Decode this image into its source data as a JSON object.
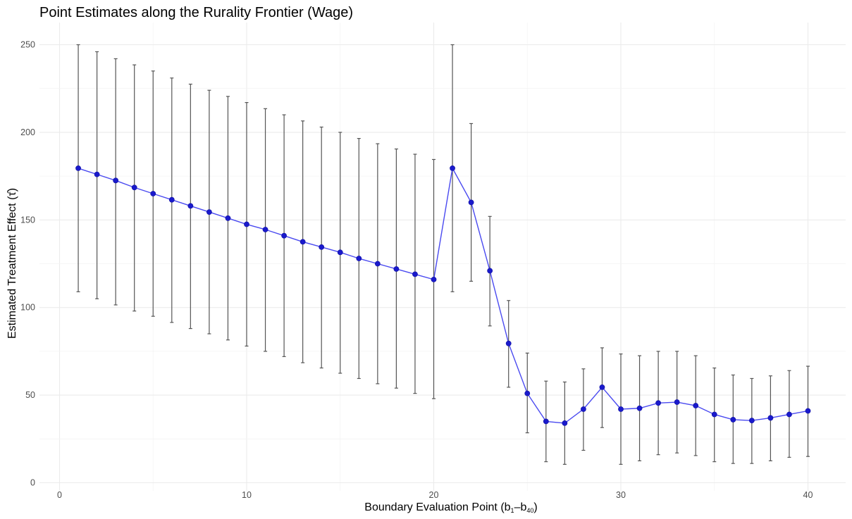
{
  "chart_data": {
    "type": "line",
    "title": "Point Estimates along the Rurality Frontier (Wage)",
    "xlabel_prefix": "Boundary Evaluation Point (b",
    "xlabel_sub1": "1",
    "xlabel_mid": "–b",
    "xlabel_sub2": "40",
    "xlabel_suffix": ")",
    "ylabel": "Estimated Treatment Effect (τ̂)",
    "xlim": [
      0,
      40
    ],
    "ylim": [
      0,
      250
    ],
    "x_ticks": [
      0,
      10,
      20,
      30,
      40
    ],
    "y_ticks": [
      0,
      50,
      100,
      150,
      200,
      250
    ],
    "grid": true,
    "legend": "none",
    "colors": {
      "line": "#4a4af0",
      "point": "#1a1acc",
      "errorbar": "#555555"
    },
    "series": [
      {
        "x": [
          1,
          2,
          3,
          4,
          5,
          6,
          7,
          8,
          9,
          10,
          11,
          12,
          13,
          14,
          15,
          16,
          17,
          18,
          19,
          20,
          21,
          22,
          23,
          24,
          25,
          26,
          27,
          28,
          29,
          30,
          31,
          32,
          33,
          34,
          35,
          36,
          37,
          38,
          39,
          40
        ],
        "estimate": [
          179.5,
          176,
          172.5,
          168.5,
          165,
          161.5,
          158,
          154.5,
          151,
          147.5,
          144.5,
          141,
          137.5,
          134.5,
          131.5,
          128,
          125,
          122,
          119,
          116,
          179.5,
          160,
          121,
          79.5,
          51,
          35,
          34,
          42,
          54.5,
          42,
          42.5,
          45.5,
          46,
          44,
          39,
          36,
          35.5,
          37,
          39,
          41
        ],
        "lower": [
          109,
          105,
          101.5,
          98,
          95,
          91.5,
          88,
          85,
          81.5,
          78,
          75,
          72,
          68.5,
          65.5,
          62.5,
          59.5,
          56.5,
          54,
          51,
          48,
          109,
          115,
          89.5,
          54.5,
          28.5,
          12,
          10.5,
          18.5,
          31.5,
          10.5,
          12.5,
          16,
          17,
          15.5,
          12,
          11,
          11,
          12.5,
          14.5,
          15
        ],
        "upper": [
          250,
          246,
          242,
          238.5,
          235,
          231,
          227.5,
          224,
          220.5,
          217,
          213.5,
          210,
          206.5,
          203,
          200,
          196.5,
          193.5,
          190.5,
          187.5,
          184.5,
          250,
          205,
          152,
          104,
          74,
          58,
          57.5,
          65,
          77,
          73.5,
          72.5,
          75,
          75,
          72.5,
          65.5,
          61.5,
          59.5,
          61,
          64,
          66.5
        ]
      }
    ]
  }
}
